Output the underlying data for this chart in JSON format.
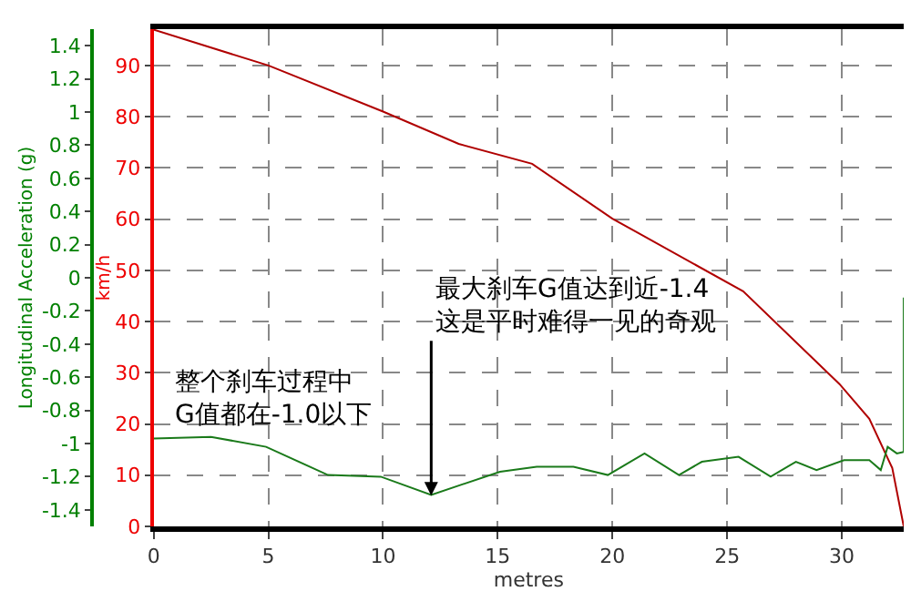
{
  "chart_data": {
    "type": "line",
    "xlabel": "metres",
    "ylabel": "km/h",
    "y2label": "Longitudinal Acceleration (g)",
    "xlim": [
      0,
      32.7
    ],
    "xticks": [
      0,
      5,
      10,
      15,
      20,
      25,
      30
    ],
    "ylim": [
      0,
      97.1
    ],
    "yticks": [
      0,
      10,
      20,
      30,
      40,
      50,
      60,
      70,
      80,
      90
    ],
    "y2lim": [
      -1.5,
      1.5
    ],
    "y2ticks": [
      -1.4,
      -1.2,
      -1,
      -0.8,
      -0.6,
      -0.4,
      -0.2,
      0,
      0.2,
      0.4,
      0.6,
      0.8,
      1,
      1.2,
      1.4
    ],
    "grid": true,
    "series": [
      {
        "color": "#b00000",
        "x": [
          0,
          5,
          10,
          13.3,
          16.5,
          20,
          25.7,
          29.9,
          31.2,
          32.2,
          32.7
        ],
        "values": [
          97,
          90,
          81,
          74.7,
          70.8,
          60.1,
          45.9,
          27.8,
          21,
          11.4,
          0
        ]
      },
      {
        "color": "#1a7a1a",
        "axis": "y2",
        "x": [
          0,
          2.5,
          4.9,
          7.6,
          9.9,
          12.1,
          15.1,
          16.7,
          18.3,
          19.8,
          21.4,
          22.9,
          23.9,
          25.5,
          26.9,
          28,
          28.9,
          30.1,
          31.2,
          31.7,
          32,
          32.4,
          32.7,
          32.7
        ],
        "values": [
          -0.97,
          -0.96,
          -1.02,
          -1.19,
          -1.2,
          -1.31,
          -1.17,
          -1.14,
          -1.14,
          -1.19,
          -1.06,
          -1.19,
          -1.11,
          -1.08,
          -1.2,
          -1.11,
          -1.16,
          -1.1,
          -1.1,
          -1.16,
          -1.02,
          -1.06,
          -1.05,
          -0.12
        ]
      }
    ],
    "annotations": [
      "整个刹车过程中\nG值都在-1.0以下",
      {
        "text": "最大刹车G值达到近-1.4\n这是平时难得一见的奇观",
        "x": 12.1,
        "y": 6
      }
    ]
  }
}
